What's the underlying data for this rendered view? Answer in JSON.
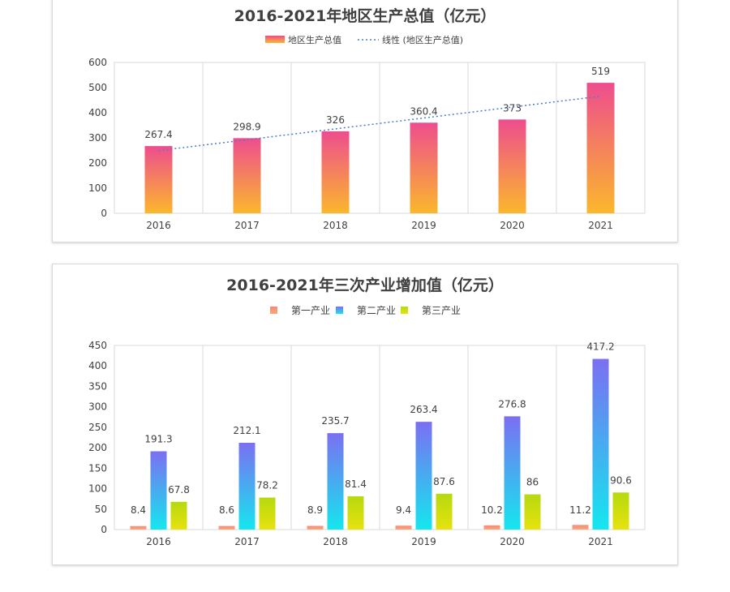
{
  "chart_data": [
    {
      "type": "bar",
      "title": "2016-2021年地区生产总值（亿元）",
      "categories": [
        "2016",
        "2017",
        "2018",
        "2019",
        "2020",
        "2021"
      ],
      "series": [
        {
          "name": "地区生产总值",
          "values": [
            267.4,
            298.9,
            326,
            360.4,
            373,
            519
          ]
        }
      ],
      "trendline": {
        "name": "线性 (地区生产总值)",
        "type": "linear",
        "style": "dotted"
      },
      "data_labels": [
        "267.4",
        "298.9",
        "326",
        "360.4",
        "373",
        "519"
      ],
      "ylim": [
        0,
        600
      ],
      "yticks": [
        0,
        100,
        200,
        300,
        400,
        500,
        600
      ],
      "grid": "vertical",
      "legend_position": "top",
      "colors": {
        "bar_top": "#ee4d8e",
        "bar_bottom": "#fbb72c",
        "trend": "#4a7ecb"
      }
    },
    {
      "type": "bar",
      "title": "2016-2021年三次产业增加值（亿元）",
      "categories": [
        "2016",
        "2017",
        "2018",
        "2019",
        "2020",
        "2021"
      ],
      "series": [
        {
          "name": "第一产业",
          "values": [
            8.4,
            8.6,
            8.9,
            9.4,
            10.2,
            11.2
          ],
          "labels": [
            "8.4",
            "8.6",
            "8.9",
            "9.4",
            "10.2",
            "11.2"
          ]
        },
        {
          "name": "第二产业",
          "values": [
            191.3,
            212.1,
            235.7,
            263.4,
            276.8,
            417.2
          ],
          "labels": [
            "191.3",
            "212.1",
            "235.7",
            "263.4",
            "276.8",
            "417.2"
          ]
        },
        {
          "name": "第三产业",
          "values": [
            67.8,
            78.2,
            81.4,
            87.6,
            86,
            90.6
          ],
          "labels": [
            "67.8",
            "78.2",
            "81.4",
            "87.6",
            "86",
            "90.6"
          ]
        }
      ],
      "ylim": [
        0,
        450
      ],
      "yticks": [
        0,
        50,
        100,
        150,
        200,
        250,
        300,
        350,
        400,
        450
      ],
      "grid": "vertical",
      "legend_position": "top",
      "colors": {
        "s1_top": "#f98877",
        "s1_bottom": "#f9a978",
        "s2_top": "#7b6ff2",
        "s2_bottom": "#14e7ef",
        "s3_top": "#b6d90f",
        "s3_bottom": "#e7e20e"
      }
    }
  ]
}
